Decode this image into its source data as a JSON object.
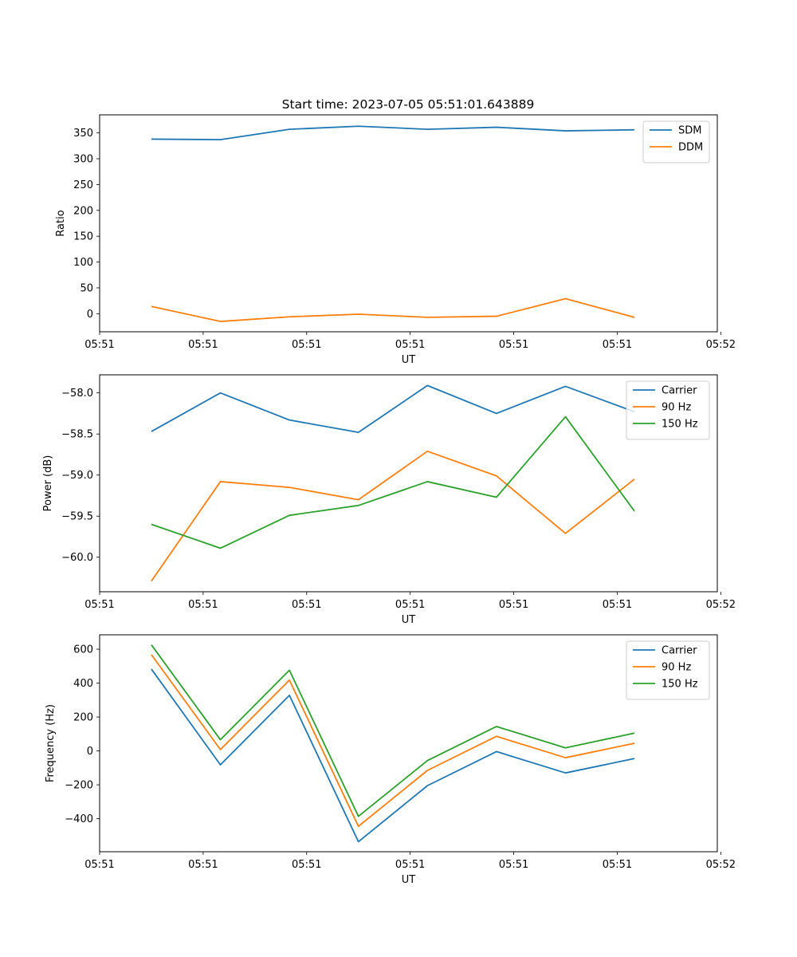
{
  "figure_title": "Start time: 2023-07-05 05:51:01.643889",
  "colors": {
    "blue": "#1f77b4",
    "orange": "#ff7f0e",
    "green": "#2ca02c"
  },
  "chart_data": [
    {
      "type": "line",
      "title": "Start time: 2023-07-05 05:51:01.643889",
      "xlabel": "UT",
      "ylabel": "Ratio",
      "x": [
        1,
        2,
        3,
        4,
        5,
        6,
        7,
        8
      ],
      "xlim": [
        0.25,
        9.2
      ],
      "x_ticks": [
        0.25,
        1.75,
        3.25,
        4.75,
        6.25,
        7.75,
        9.25
      ],
      "x_tick_labels": [
        "05:51",
        "05:51",
        "05:51",
        "05:51",
        "05:51",
        "05:51",
        "05:52"
      ],
      "ylim": [
        -35,
        385
      ],
      "y_ticks": [
        0,
        50,
        100,
        150,
        200,
        250,
        300,
        350
      ],
      "y_tick_labels": [
        "0",
        "50",
        "100",
        "150",
        "200",
        "250",
        "300",
        "350"
      ],
      "legend_position": "top-right",
      "series": [
        {
          "name": "SDM",
          "color": "#1f77b4",
          "values": [
            338,
            337,
            357,
            363,
            357,
            361,
            354,
            356
          ]
        },
        {
          "name": "DDM",
          "color": "#ff7f0e",
          "values": [
            14,
            -15,
            -6,
            -1,
            -7,
            -5,
            29,
            -7
          ]
        }
      ]
    },
    {
      "type": "line",
      "xlabel": "UT",
      "ylabel": "Power (dB)",
      "x": [
        1,
        2,
        3,
        4,
        5,
        6,
        7,
        8
      ],
      "xlim": [
        0.25,
        9.2
      ],
      "x_ticks": [
        0.25,
        1.75,
        3.25,
        4.75,
        6.25,
        7.75,
        9.25
      ],
      "x_tick_labels": [
        "05:51",
        "05:51",
        "05:51",
        "05:51",
        "05:51",
        "05:51",
        "05:52"
      ],
      "ylim": [
        -60.42,
        -57.78
      ],
      "y_ticks": [
        -60.0,
        -59.5,
        -59.0,
        -58.5,
        -58.0
      ],
      "y_tick_labels": [
        "−60.0",
        "−59.5",
        "−59.0",
        "−58.5",
        "−58.0"
      ],
      "legend_position": "top-right",
      "series": [
        {
          "name": "Carrier",
          "color": "#1f77b4",
          "values": [
            -58.47,
            -58.0,
            -58.33,
            -58.48,
            -57.91,
            -58.25,
            -57.92,
            -58.23
          ]
        },
        {
          "name": "90 Hz",
          "color": "#ff7f0e",
          "values": [
            -60.29,
            -59.08,
            -59.15,
            -59.3,
            -58.71,
            -59.01,
            -59.71,
            -59.05
          ]
        },
        {
          "name": "150 Hz",
          "color": "#2ca02c",
          "values": [
            -59.6,
            -59.89,
            -59.49,
            -59.37,
            -59.08,
            -59.27,
            -58.29,
            -59.44
          ]
        }
      ]
    },
    {
      "type": "line",
      "xlabel": "UT",
      "ylabel": "Frequency (Hz)",
      "x": [
        1,
        2,
        3,
        4,
        5,
        6,
        7,
        8
      ],
      "xlim": [
        0.25,
        9.2
      ],
      "x_ticks": [
        0.25,
        1.75,
        3.25,
        4.75,
        6.25,
        7.75,
        9.25
      ],
      "x_tick_labels": [
        "05:51",
        "05:51",
        "05:51",
        "05:51",
        "05:51",
        "05:51",
        "05:52"
      ],
      "ylim": [
        -595,
        685
      ],
      "y_ticks": [
        -400,
        -200,
        0,
        200,
        400,
        600
      ],
      "y_tick_labels": [
        "−400",
        "−200",
        "0",
        "200",
        "400",
        "600"
      ],
      "legend_position": "top-right",
      "series": [
        {
          "name": "Carrier",
          "color": "#1f77b4",
          "values": [
            483,
            -82,
            328,
            -536,
            -205,
            -4,
            -130,
            -45
          ]
        },
        {
          "name": "90 Hz",
          "color": "#ff7f0e",
          "values": [
            568,
            8,
            418,
            -445,
            -115,
            86,
            -40,
            45
          ]
        },
        {
          "name": "150 Hz",
          "color": "#2ca02c",
          "values": [
            626,
            66,
            476,
            -386,
            -57,
            144,
            18,
            105
          ]
        }
      ]
    }
  ]
}
